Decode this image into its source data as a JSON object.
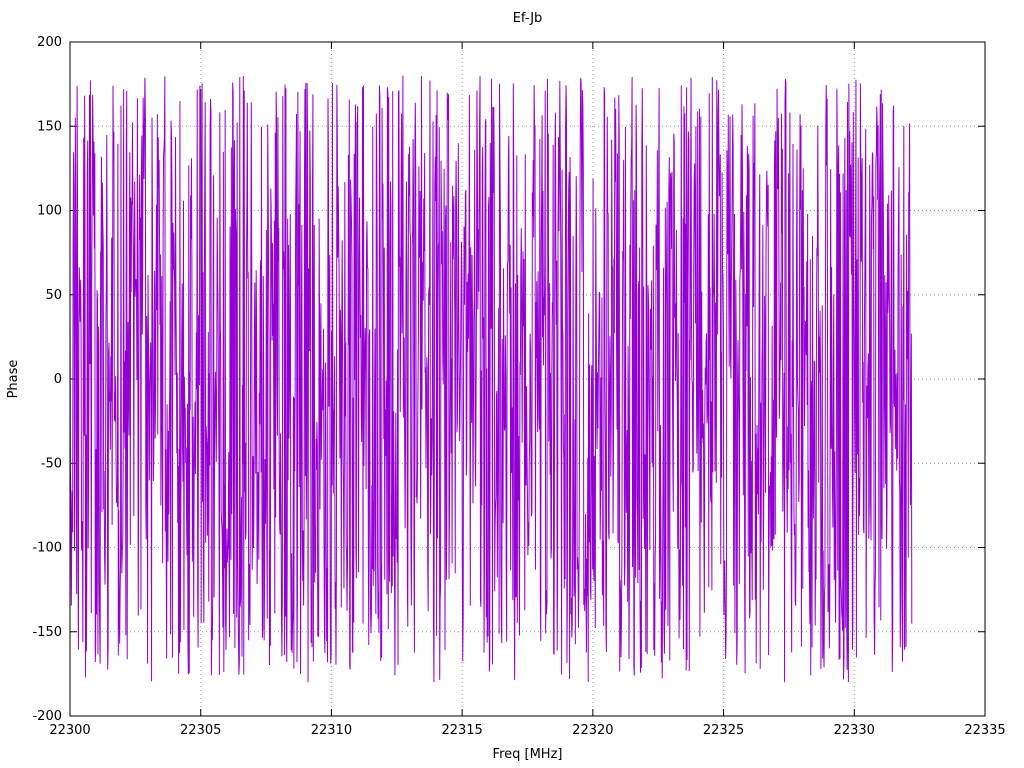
{
  "chart_data": {
    "type": "line",
    "title": "Ef-Jb",
    "xlabel": "Freq [MHz]",
    "ylabel": "Phase",
    "xlim": [
      22300,
      22335
    ],
    "ylim": [
      -200,
      200
    ],
    "x_ticks": [
      22300,
      22305,
      22310,
      22315,
      22320,
      22325,
      22330,
      22335
    ],
    "y_ticks": [
      -200,
      -150,
      -100,
      -50,
      0,
      50,
      100,
      150,
      200
    ],
    "grid": true,
    "legend_position": "none",
    "series": [
      {
        "name": "phase",
        "color": "#9400d3",
        "x_start": 22300,
        "x_end": 22332.2,
        "n_points": 1900,
        "y_wrap_deg": 180,
        "y_observed_min": -180,
        "y_observed_max": 182,
        "seed": 987654321,
        "character": "noise-like wrapped interferometric phase spanning full -180..180 range"
      }
    ]
  },
  "layout_values": {
    "grid_style": "dotted"
  },
  "colors": {
    "background": "#ffffff",
    "border": "#000000",
    "grid": "#9a9a9a",
    "text": "#000000",
    "series": "#9400d3"
  }
}
